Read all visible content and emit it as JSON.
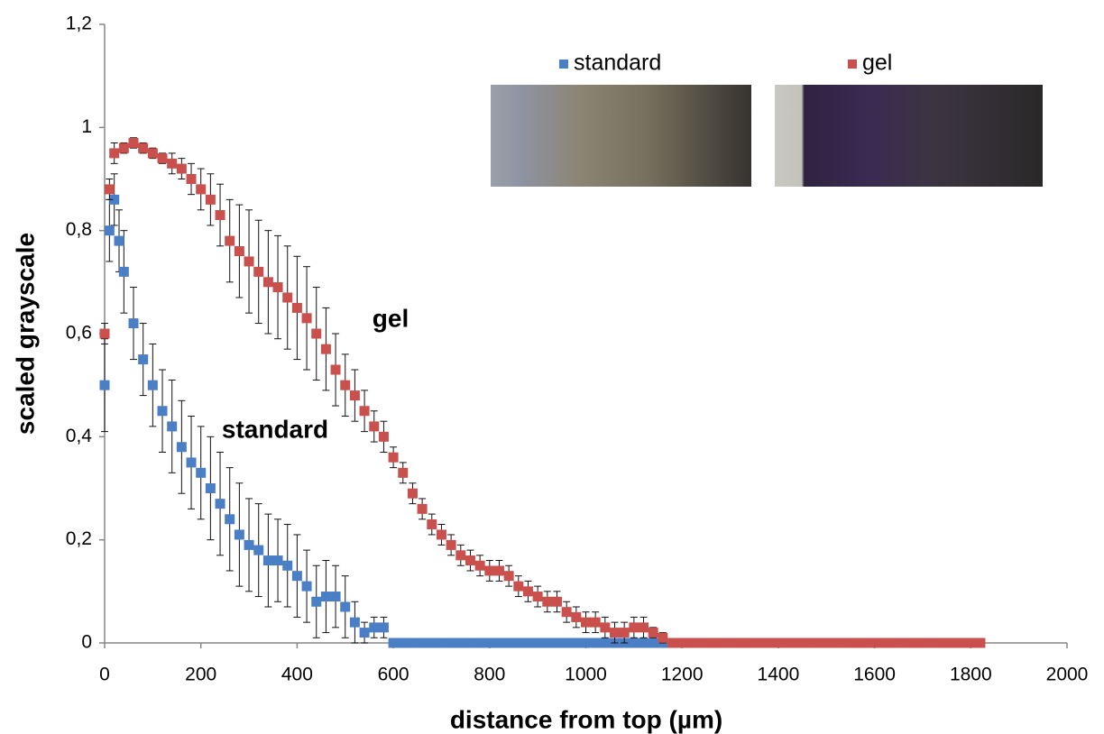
{
  "chart_data": {
    "type": "scatter",
    "xlabel": "distance from top (µm)",
    "ylabel": "scaled grayscale",
    "annotations": [
      "gel",
      "standard"
    ],
    "xlim": [
      0,
      2000
    ],
    "xticks": [
      0,
      200,
      400,
      600,
      800,
      1000,
      1200,
      1400,
      1600,
      1800,
      2000
    ],
    "ylim": [
      0,
      1.2
    ],
    "yticks": [
      0,
      {
        "value": 0.2,
        "label": "0,2"
      },
      {
        "value": 0.4,
        "label": "0,4"
      },
      {
        "value": 0.6,
        "label": "0,6"
      },
      {
        "value": 0.8,
        "label": "0,8"
      },
      1,
      {
        "value": 1.2,
        "label": "1,2"
      }
    ],
    "grid": false,
    "legend": "top-right",
    "series": [
      {
        "name": "standard",
        "color": "#4a7fc6",
        "x": [
          0,
          10,
          20,
          30,
          40,
          60,
          80,
          100,
          120,
          140,
          160,
          180,
          200,
          220,
          240,
          260,
          280,
          300,
          320,
          340,
          360,
          380,
          400,
          420,
          440,
          460,
          480,
          500,
          520,
          540,
          560,
          580,
          600,
          620,
          640,
          660,
          680,
          700,
          720,
          740,
          760,
          780,
          800,
          820,
          840,
          860,
          880,
          900,
          920,
          940,
          960,
          980,
          1000,
          1020,
          1040,
          1060,
          1080,
          1100,
          1120,
          1140,
          1160
        ],
        "values": [
          0.5,
          0.8,
          0.86,
          0.78,
          0.72,
          0.62,
          0.55,
          0.5,
          0.45,
          0.42,
          0.38,
          0.35,
          0.33,
          0.3,
          0.27,
          0.24,
          0.21,
          0.19,
          0.18,
          0.16,
          0.16,
          0.15,
          0.13,
          0.11,
          0.08,
          0.09,
          0.09,
          0.07,
          0.04,
          0.02,
          0.03,
          0.03,
          0,
          0,
          0,
          0,
          0,
          0,
          0,
          0,
          0,
          0,
          0,
          0,
          0,
          0,
          0,
          0,
          0,
          0,
          0,
          0,
          0,
          0,
          0,
          0,
          0,
          0,
          0,
          0,
          0
        ],
        "errors": [
          0.09,
          0.06,
          0.05,
          0.06,
          0.08,
          0.07,
          0.07,
          0.08,
          0.08,
          0.09,
          0.09,
          0.09,
          0.09,
          0.1,
          0.1,
          0.1,
          0.1,
          0.09,
          0.09,
          0.09,
          0.08,
          0.08,
          0.08,
          0.07,
          0.07,
          0.07,
          0.06,
          0.06,
          0.04,
          0.02,
          0.02,
          0.02,
          0,
          0,
          0,
          0,
          0,
          0,
          0,
          0,
          0,
          0,
          0,
          0,
          0,
          0,
          0,
          0,
          0,
          0,
          0,
          0,
          0,
          0,
          0,
          0,
          0,
          0,
          0,
          0,
          0
        ]
      },
      {
        "name": "gel",
        "color": "#c9504d",
        "x": [
          0,
          10,
          20,
          40,
          60,
          80,
          100,
          120,
          140,
          160,
          180,
          200,
          220,
          240,
          260,
          280,
          300,
          320,
          340,
          360,
          380,
          400,
          420,
          440,
          460,
          480,
          500,
          520,
          540,
          560,
          580,
          600,
          620,
          640,
          660,
          680,
          700,
          720,
          740,
          760,
          780,
          800,
          820,
          840,
          860,
          880,
          900,
          920,
          940,
          960,
          980,
          1000,
          1020,
          1040,
          1060,
          1080,
          1100,
          1120,
          1140,
          1160,
          1180,
          1200,
          1220,
          1240,
          1260,
          1280,
          1300,
          1320,
          1340,
          1360,
          1380,
          1400,
          1420,
          1440,
          1460,
          1480,
          1500,
          1520,
          1540,
          1560,
          1580,
          1600,
          1620,
          1640,
          1660,
          1680,
          1700,
          1720,
          1740,
          1760,
          1780,
          1800,
          1820
        ],
        "values": [
          0.6,
          0.88,
          0.95,
          0.96,
          0.97,
          0.96,
          0.95,
          0.94,
          0.93,
          0.92,
          0.9,
          0.88,
          0.86,
          0.83,
          0.78,
          0.76,
          0.74,
          0.72,
          0.7,
          0.69,
          0.67,
          0.65,
          0.63,
          0.6,
          0.57,
          0.53,
          0.5,
          0.48,
          0.45,
          0.42,
          0.4,
          0.36,
          0.33,
          0.29,
          0.26,
          0.23,
          0.21,
          0.19,
          0.17,
          0.16,
          0.15,
          0.14,
          0.14,
          0.13,
          0.11,
          0.1,
          0.09,
          0.08,
          0.08,
          0.06,
          0.05,
          0.04,
          0.04,
          0.03,
          0.02,
          0.02,
          0.03,
          0.03,
          0.02,
          0.01,
          0,
          0,
          0,
          0,
          0,
          0,
          0,
          0,
          0,
          0,
          0,
          0,
          0,
          0,
          0,
          0,
          0,
          0,
          0,
          0,
          0,
          0,
          0,
          0,
          0,
          0,
          0,
          0,
          0,
          0,
          0,
          0,
          0
        ],
        "errors": [
          0.02,
          0.02,
          0.02,
          0.01,
          0.01,
          0.01,
          0.01,
          0.01,
          0.02,
          0.02,
          0.03,
          0.04,
          0.05,
          0.06,
          0.08,
          0.09,
          0.1,
          0.1,
          0.1,
          0.1,
          0.1,
          0.1,
          0.1,
          0.09,
          0.08,
          0.07,
          0.06,
          0.05,
          0.04,
          0.03,
          0.03,
          0.02,
          0.02,
          0.02,
          0.02,
          0.02,
          0.02,
          0.02,
          0.02,
          0.02,
          0.02,
          0.02,
          0.02,
          0.02,
          0.02,
          0.02,
          0.02,
          0.02,
          0.02,
          0.02,
          0.02,
          0.02,
          0.02,
          0.02,
          0.02,
          0.02,
          0.02,
          0.02,
          0.01,
          0.01,
          0,
          0,
          0,
          0,
          0,
          0,
          0,
          0,
          0,
          0,
          0,
          0,
          0,
          0,
          0,
          0,
          0,
          0,
          0,
          0,
          0,
          0,
          0,
          0,
          0,
          0,
          0,
          0,
          0,
          0,
          0,
          0,
          0
        ]
      }
    ]
  }
}
